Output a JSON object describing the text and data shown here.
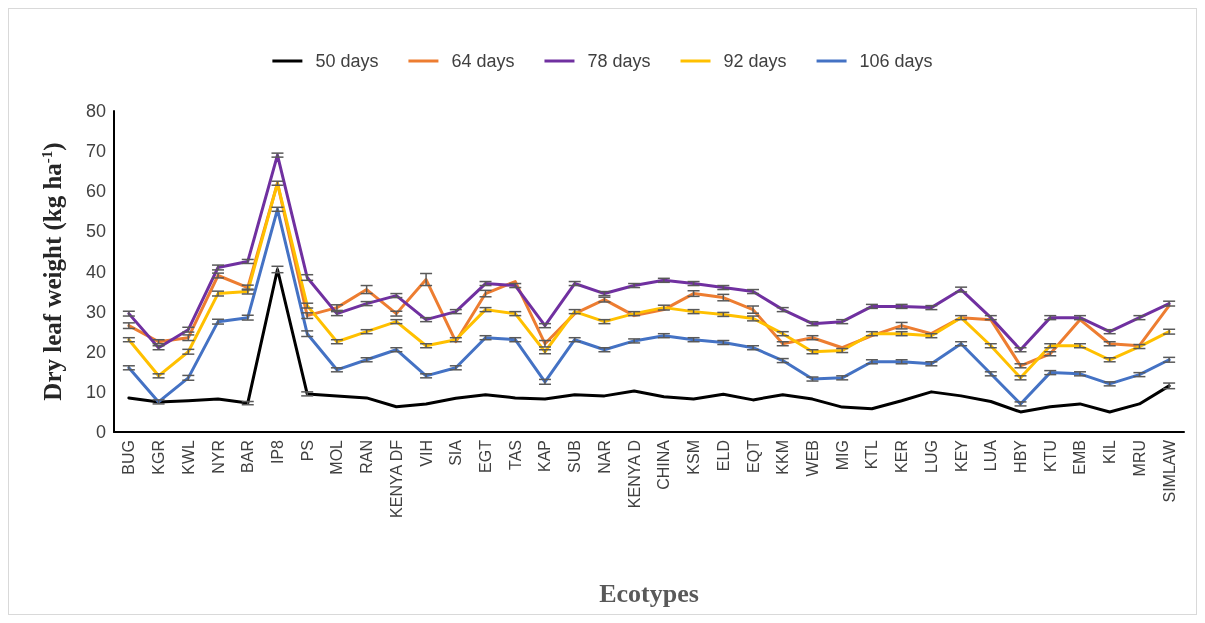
{
  "chart_data": {
    "type": "line",
    "xlabel": "Ecotypes",
    "ylabel": "Dry leaf weight (kg ha$^{-1}$)",
    "categories": [
      "BUG",
      "KGR",
      "KWL",
      "NYR",
      "BAR",
      "IP8",
      "PS",
      "MOL",
      "RAN",
      "KENYA DF",
      "VIH",
      "SIA",
      "EGT",
      "TAS",
      "KAP",
      "SUB",
      "NAR",
      "KENYA D",
      "CHINA",
      "KSM",
      "ELD",
      "EQT",
      "KKM",
      "WEB",
      "MIG",
      "KTL",
      "KER",
      "LUG",
      "KEY",
      "LUA",
      "HBY",
      "KTU",
      "EMB",
      "KIL",
      "MRU",
      "SIMLAW"
    ],
    "series": [
      {
        "name": "50 days",
        "color": "#000000",
        "values": [
          8.5,
          7.5,
          7.8,
          8.2,
          7.2,
          40.5,
          9.5,
          9,
          8.5,
          6.3,
          7,
          8.4,
          9.3,
          8.5,
          8.2,
          9.3,
          9,
          10.2,
          8.8,
          8.2,
          9.4,
          8,
          9.3,
          8.2,
          6.2,
          5.8,
          7.8,
          10,
          9,
          7.6,
          5,
          6.3,
          7,
          5,
          7,
          11.5
        ],
        "errors": [
          null,
          null,
          null,
          null,
          0.4,
          0.8,
          0.5,
          null,
          null,
          null,
          null,
          null,
          null,
          null,
          null,
          null,
          null,
          null,
          null,
          null,
          null,
          null,
          null,
          null,
          null,
          null,
          null,
          null,
          null,
          null,
          null,
          null,
          null,
          null,
          null,
          0.7
        ]
      },
      {
        "name": "64 days",
        "color": "#ed7d31",
        "values": [
          26.5,
          22.5,
          23.5,
          39,
          36,
          62,
          29,
          31,
          35.5,
          29.5,
          38,
          22.5,
          34.5,
          37.5,
          22,
          29.5,
          33,
          29,
          30.5,
          34.5,
          33.5,
          30.5,
          22,
          23.5,
          21,
          24,
          26.5,
          24.5,
          28.5,
          28,
          16.5,
          19.5,
          28,
          22,
          21.5,
          31.5
        ],
        "errors": [
          0.7,
          0.5,
          0.7,
          0.6,
          0.6,
          null,
          0.7,
          0.7,
          1,
          0.6,
          1.5,
          null,
          0.8,
          null,
          0.8,
          null,
          0.6,
          null,
          null,
          0.7,
          0.8,
          0.9,
          0.5,
          0.5,
          null,
          null,
          0.8,
          null,
          null,
          null,
          0.5,
          0.5,
          null,
          0.5,
          null,
          null
        ]
      },
      {
        "name": "78 days",
        "color": "#7030a0",
        "values": [
          29.5,
          21,
          25.5,
          41,
          42.5,
          69,
          38.5,
          29.5,
          32,
          34,
          28,
          30,
          37,
          36.5,
          26.5,
          37,
          34.5,
          36.5,
          37.8,
          37,
          36,
          35,
          30.5,
          27,
          27.5,
          31.3,
          31.3,
          31,
          35.5,
          28.5,
          20.5,
          28.5,
          28.5,
          25,
          28.5,
          32
        ],
        "errors": [
          0.6,
          0.5,
          0.6,
          0.6,
          0.5,
          0.5,
          0.7,
          0.5,
          0.5,
          0.5,
          0.5,
          0.5,
          0.5,
          0.5,
          0.5,
          0.5,
          0.5,
          0.5,
          0.5,
          0.5,
          0.5,
          0.5,
          0.5,
          0.5,
          0.5,
          0.5,
          0.5,
          0.5,
          0.6,
          0.5,
          0.5,
          0.5,
          0.5,
          0.5,
          0.5,
          0.6
        ]
      },
      {
        "name": "92 days",
        "color": "#ffc000",
        "values": [
          23,
          14,
          20,
          34.5,
          35,
          62,
          31.5,
          22.5,
          25,
          27.5,
          21.5,
          23,
          30.5,
          29.5,
          20,
          30,
          27.5,
          29.5,
          31,
          30,
          29.3,
          28.3,
          24.5,
          20,
          20.3,
          24.5,
          24.5,
          24,
          28.5,
          21.5,
          13.5,
          21.5,
          21.5,
          18,
          21.3,
          25
        ],
        "errors": [
          0.5,
          0.5,
          0.6,
          0.6,
          0.6,
          0.5,
          0.6,
          0.5,
          0.5,
          0.5,
          0.5,
          0.5,
          0.5,
          0.5,
          0.5,
          0.5,
          0.5,
          0.5,
          0.6,
          0.5,
          0.5,
          0.6,
          0.5,
          0.5,
          0.5,
          0.5,
          0.5,
          0.5,
          0.5,
          0.5,
          0.5,
          0.5,
          0.5,
          0.5,
          0.5,
          0.6
        ]
      },
      {
        "name": "106 days",
        "color": "#4472c4",
        "values": [
          16,
          7.5,
          13.5,
          27.5,
          28.5,
          55.5,
          24.5,
          15.5,
          18,
          20.5,
          14,
          16,
          23.5,
          23,
          12.5,
          23,
          20.5,
          22.7,
          24,
          23,
          22.3,
          21,
          17.8,
          13.2,
          13.5,
          17.5,
          17.5,
          17,
          22,
          14.5,
          7,
          14.8,
          14.5,
          12,
          14.3,
          18
        ],
        "errors": [
          0.5,
          0.5,
          0.6,
          0.6,
          0.6,
          0.5,
          0.7,
          0.5,
          0.5,
          0.5,
          0.5,
          0.5,
          0.5,
          0.5,
          0.6,
          0.5,
          0.5,
          0.5,
          0.5,
          0.5,
          0.5,
          0.5,
          0.5,
          0.5,
          0.5,
          0.5,
          0.5,
          0.5,
          0.5,
          0.5,
          0.5,
          0.5,
          0.5,
          0.5,
          0.5,
          0.6
        ]
      }
    ],
    "ylim": [
      0,
      80
    ],
    "yticks": [
      0,
      10,
      20,
      30,
      40,
      50,
      60,
      70,
      80
    ],
    "grid": false,
    "legend": "top",
    "marker": "none",
    "line_style": "solid"
  }
}
